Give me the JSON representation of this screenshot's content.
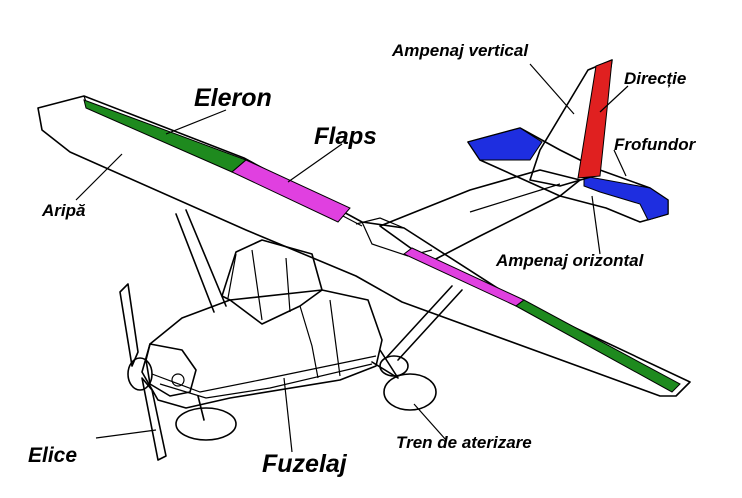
{
  "labels": {
    "eleron": "Eleron",
    "flaps": "Flaps",
    "aripa": "Aripă",
    "ampenaj_vertical": "Ampenaj vertical",
    "directie": "Direcție",
    "frofundor": "Frofundor",
    "ampenaj_orizontal": "Ampenaj orizontal",
    "elice": "Elice",
    "fuzelaj": "Fuzelaj",
    "tren_de_aterizare": "Tren de aterizare"
  },
  "colors": {
    "aileron": "#1e8a1e",
    "flaps": "#e040e0",
    "rudder": "#e02020",
    "elevator": "#1e2ee0",
    "outline": "#000000"
  }
}
